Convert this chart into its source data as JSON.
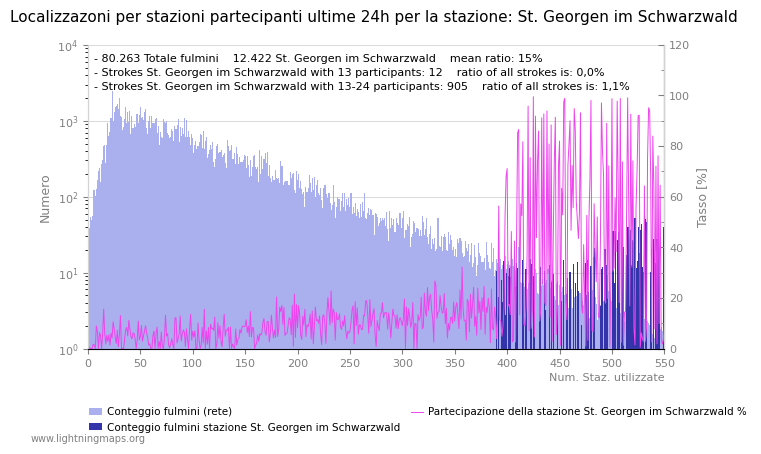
{
  "title": "Localizzazoni per stazioni partecipanti ultime 24h per la stazione: St. Georgen im Schwarzwald",
  "annotation_lines": [
    "80.263 Totale fulmini    12.422 St. Georgen im Schwarzwald    mean ratio: 15%",
    "Strokes St. Georgen im Schwarzwald with 13 participants: 12    ratio of all strokes is: 0,0%",
    "Strokes St. Georgen im Schwarzwald with 13-24 participants: 905    ratio of all strokes is: 1,1%"
  ],
  "ylabel_left": "Numero",
  "ylabel_right": "Tasso [%]",
  "xlabel": "Num. Staz. utilizzate",
  "watermark": "www.lightningmaps.org",
  "legend_labels": [
    "Conteggio fulmini (rete)",
    "Conteggio fulmini stazione St. Georgen im Schwarzwald",
    "Partecipazione della stazione St. Georgen im Schwarzwald %"
  ],
  "bar_color_network": "#aab0ee",
  "bar_color_station": "#3333aa",
  "line_color": "#ee44ee",
  "xlim": [
    0,
    550
  ],
  "ylim_left": [
    1,
    10000
  ],
  "ylim_right": [
    0,
    120
  ],
  "right_ticks": [
    0,
    20,
    40,
    60,
    80,
    100,
    120
  ],
  "title_fontsize": 11,
  "annotation_fontsize": 8,
  "label_fontsize": 9,
  "tick_fontsize": 8,
  "xticks": [
    0,
    50,
    100,
    150,
    200,
    250,
    300,
    350,
    400,
    450,
    500,
    550
  ]
}
